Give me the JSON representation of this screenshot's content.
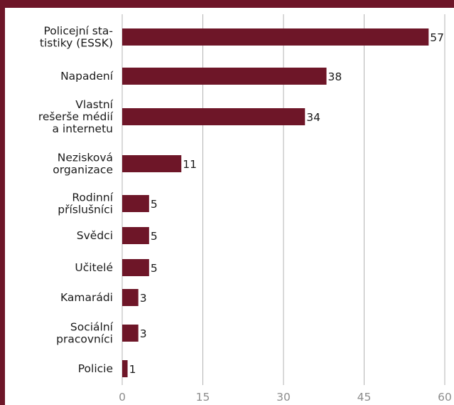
{
  "colors": {
    "frame": "#6e1628",
    "bar": "#6e1628",
    "grid": "#b3b3b3",
    "background": "#ffffff"
  },
  "chart_data": {
    "type": "bar",
    "orientation": "horizontal",
    "categories": [
      [
        "Policejní sta-",
        "tistiky (ESSK)"
      ],
      [
        "Napadení"
      ],
      [
        "Vlastní",
        "rešerše médií",
        "a internetu"
      ],
      [
        "Nezisková",
        "organizace"
      ],
      [
        "Rodinní",
        "příslušníci"
      ],
      [
        "Svědci"
      ],
      [
        "Učitelé"
      ],
      [
        "Kamarádi"
      ],
      [
        "Sociální",
        "pracovníci"
      ],
      [
        "Policie"
      ]
    ],
    "values": [
      57,
      38,
      34,
      11,
      5,
      5,
      5,
      3,
      3,
      1
    ],
    "data_labels": [
      "57",
      "38",
      "34",
      "11",
      "5",
      "5",
      "5",
      "3",
      "3",
      "1"
    ],
    "xlim": [
      0,
      60
    ],
    "xticks": [
      "0",
      "15",
      "30",
      "45",
      "60"
    ],
    "grid": "vertical",
    "title": "",
    "xlabel": "",
    "ylabel": ""
  }
}
